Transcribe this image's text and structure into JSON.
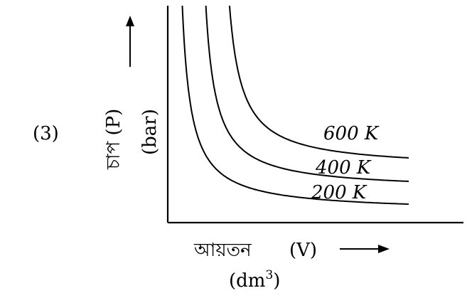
{
  "option_label": "(3)",
  "chart_data": {
    "type": "line",
    "title": "",
    "xlabel": "আয়তন (V) (dm³)",
    "ylabel": "চাপ (P) (bar)",
    "grid": false,
    "series": [
      {
        "name": "200 K",
        "label": "200 K"
      },
      {
        "name": "400 K",
        "label": "400 K"
      },
      {
        "name": "600 K",
        "label": "600 K"
      }
    ]
  },
  "axes": {
    "x_label_main": "আয়তন",
    "x_label_symbol": "(V)",
    "x_unit_open": "(dm",
    "x_unit_exp": "3",
    "x_unit_close": ")",
    "y_label_main": "চাপ (P)",
    "y_unit": "(bar)"
  },
  "colors": {
    "line": "#000000",
    "background": "#ffffff"
  }
}
